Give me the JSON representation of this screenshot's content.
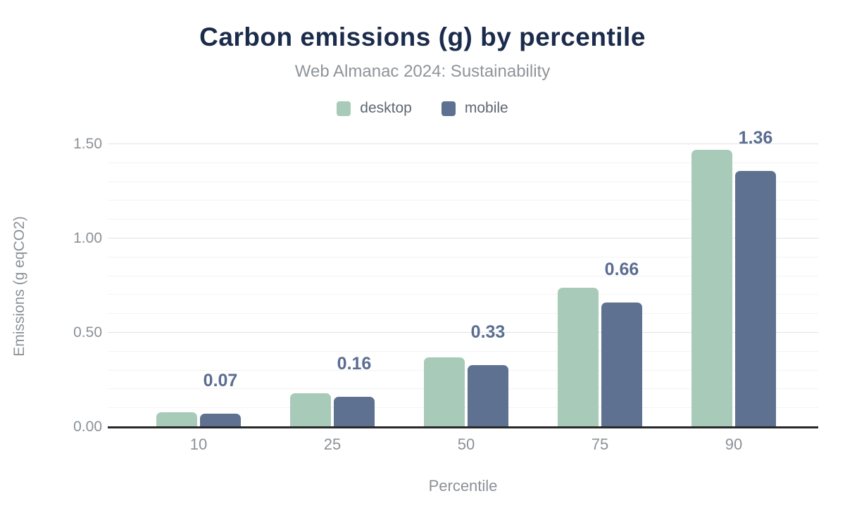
{
  "chart_data": {
    "type": "bar",
    "title": "Carbon emissions (g) by percentile",
    "subtitle": "Web Almanac 2024: Sustainability",
    "xlabel": "Percentile",
    "ylabel": "Emissions (g eqCO2)",
    "categories": [
      "10",
      "25",
      "50",
      "75",
      "90"
    ],
    "series": [
      {
        "name": "desktop",
        "color": "#a8cab9",
        "values": [
          0.08,
          0.18,
          0.37,
          0.74,
          1.47
        ]
      },
      {
        "name": "mobile",
        "color": "#5f7190",
        "values": [
          0.07,
          0.16,
          0.33,
          0.66,
          1.36
        ]
      }
    ],
    "data_labels": {
      "labeled_series": "mobile",
      "values": [
        "0.07",
        "0.16",
        "0.33",
        "0.66",
        "1.36"
      ]
    },
    "y_ticks": [
      {
        "label": "0.00",
        "value": 0.0
      },
      {
        "label": "0.50",
        "value": 0.5
      },
      {
        "label": "1.00",
        "value": 1.0
      },
      {
        "label": "1.50",
        "value": 1.5
      }
    ],
    "ylim": [
      0,
      1.5
    ],
    "minor_grid_step": 0.1,
    "major_grid_step": 0.5,
    "grid": "horizontal",
    "legend_position": "top"
  },
  "colors": {
    "background": "#ffffff",
    "title": "#1b2b4b",
    "subtitle_text": "#8f9499",
    "legend_text": "#5f6873",
    "axis_text": "#8b9197",
    "axis_line": "#28282a",
    "grid_major": "#e2e2e4",
    "grid_minor": "#f3f3f4",
    "data_label": "#5a6d91",
    "desktop": "#a8cab9",
    "mobile": "#5f7190"
  }
}
